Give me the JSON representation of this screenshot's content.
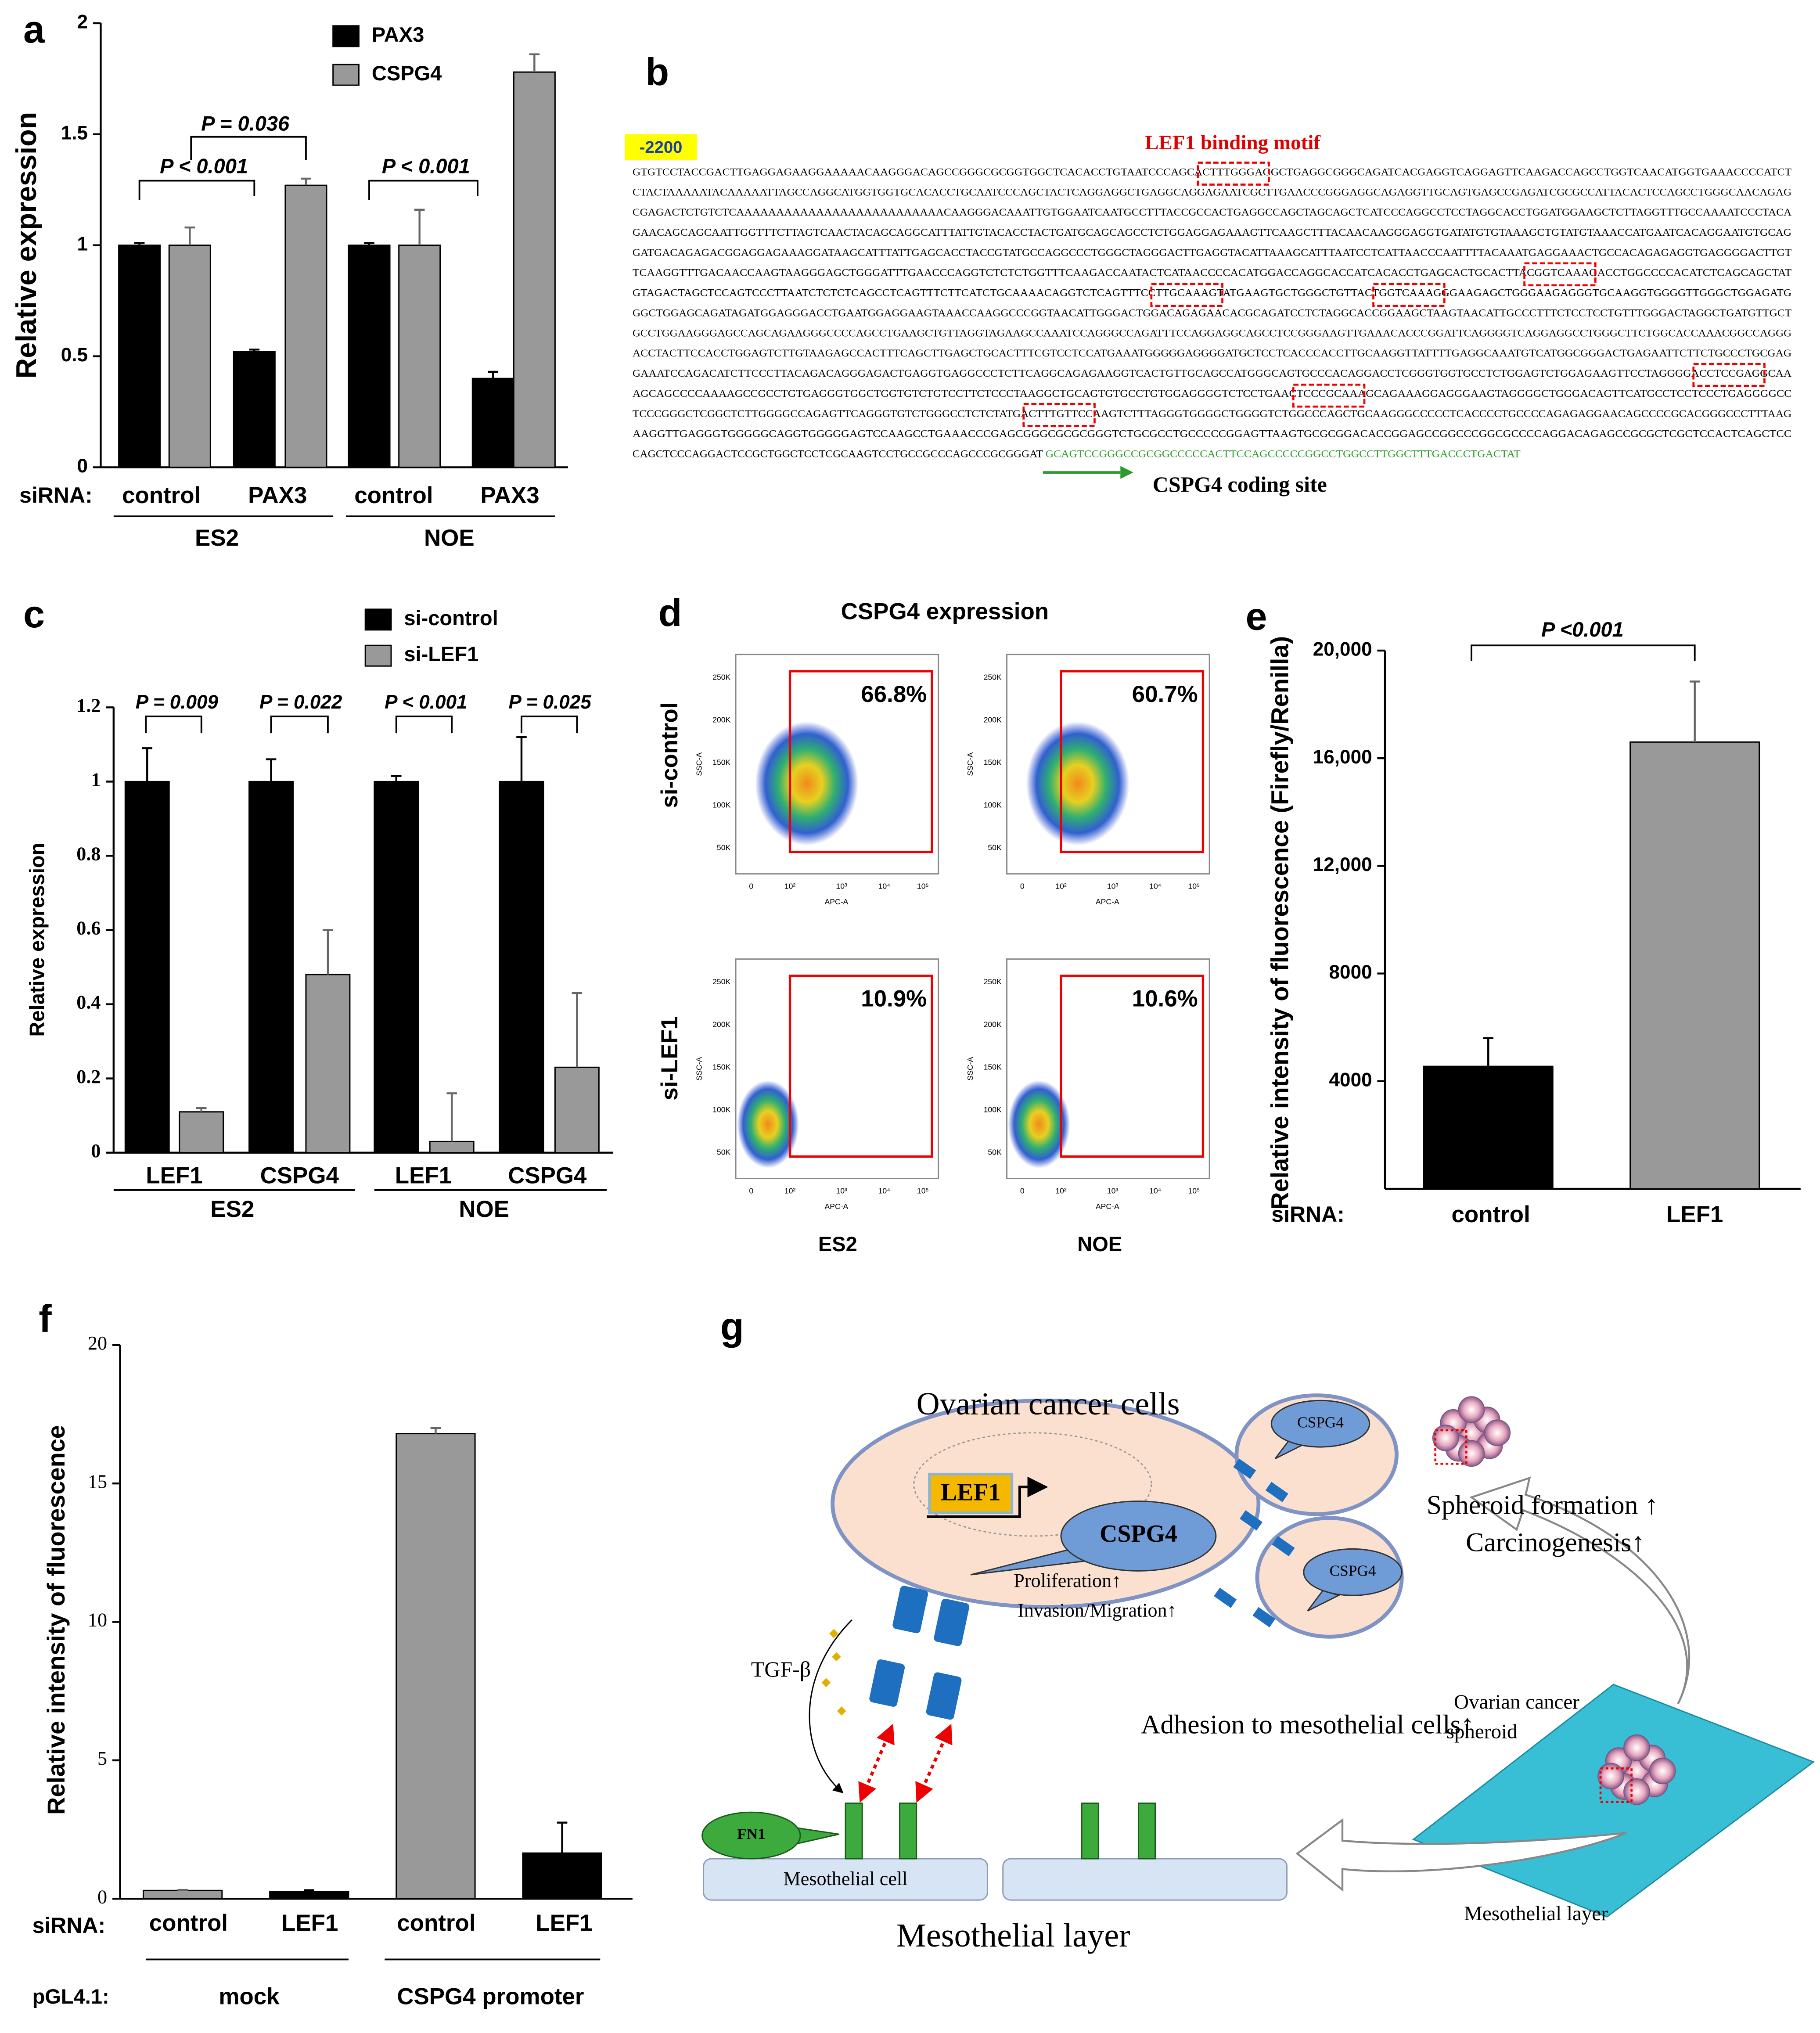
{
  "panel_labels": [
    "a",
    "b",
    "c",
    "d",
    "e",
    "f",
    "g"
  ],
  "chart_data": [
    {
      "type": "bar",
      "ylabel": "Relative expression",
      "x_prefix": "siRNA:",
      "categories": [
        "control",
        "PAX3",
        "control",
        "PAX3"
      ],
      "groups": [
        "ES2",
        "NOE"
      ],
      "series": [
        {
          "name": "PAX3",
          "color": "#000000",
          "values": [
            1,
            0.52,
            1,
            0.4
          ],
          "errors": [
            0.01,
            0.01,
            0.01,
            0.03
          ]
        },
        {
          "name": "CSPG4",
          "color": "#999999",
          "values": [
            1,
            1.27,
            1,
            1.78
          ],
          "errors": [
            0.08,
            0.03,
            0.16,
            0.08
          ]
        }
      ],
      "ylim": [
        0,
        2
      ],
      "yticks": [
        0,
        0.5,
        1,
        1.5,
        2
      ],
      "annotations": [
        "P = 0.036",
        "P < 0.001",
        "P < 0.001"
      ]
    },
    {
      "type": "bar",
      "ylabel": "Relative expression",
      "categories": [
        "LEF1",
        "CSPG4",
        "LEF1",
        "CSPG4"
      ],
      "groups": [
        "ES2",
        "NOE"
      ],
      "series": [
        {
          "name": "si-control",
          "color": "#000000",
          "values": [
            1,
            1,
            1,
            1
          ],
          "errors": [
            0.09,
            0.06,
            0.015,
            0.12
          ]
        },
        {
          "name": "si-LEF1",
          "color": "#999999",
          "values": [
            0.11,
            0.48,
            0.03,
            0.23
          ],
          "errors": [
            0.01,
            0.12,
            0.13,
            0.2
          ]
        }
      ],
      "ylim": [
        0,
        1.2
      ],
      "yticks": [
        0,
        0.2,
        0.4,
        0.6,
        0.8,
        1,
        1.2
      ],
      "annotations": [
        "P = 0.009",
        "P = 0.022",
        "P < 0.001",
        "P = 0.025"
      ]
    },
    {
      "type": "bar",
      "ylabel": "Relative intensity of fluorescence (Firefly/Renilla)",
      "x_prefix": "siRNA:",
      "categories": [
        "control",
        "LEF1"
      ],
      "series": [
        {
          "colors": [
            "#000000",
            "#999999"
          ],
          "values": [
            4550,
            16600
          ],
          "errors": [
            1050,
            2250
          ]
        }
      ],
      "ylim": [
        0,
        20000
      ],
      "yticks": [
        4000,
        8000,
        {
          "value": 12000,
          "label": "12,000"
        },
        {
          "value": 16000,
          "label": "16,000"
        },
        {
          "value": 20000,
          "label": "20,000"
        }
      ],
      "annotations": [
        "P <0.001"
      ]
    },
    {
      "type": "bar",
      "ylabel": "Relative intensity of fluorescence",
      "x_prefix": "siRNA:",
      "categories": [
        "control",
        "LEF1",
        "control",
        "LEF1"
      ],
      "group_prefix": "pGL4.1:",
      "groups": [
        "mock",
        "CSPG4 promoter"
      ],
      "series": [
        {
          "colors": [
            "#999999",
            "#000000",
            "#999999",
            "#000000"
          ],
          "values": [
            0.3,
            0.25,
            16.8,
            1.65
          ],
          "errors": [
            0.02,
            0.06,
            0.2,
            1.1
          ]
        }
      ],
      "ylim": [
        0,
        20
      ],
      "yticks": [
        0,
        5,
        10,
        15,
        20
      ]
    }
  ],
  "sequence_panel": {
    "start": "-2200",
    "motif_label": "LEF1 binding motif",
    "coding_label": "CSPG4 coding site",
    "lines": [
      "GTGTCCTACCGACTTGAGGAGAAGGAAAAACAAGGGACAGCCGGGCGCGGTGGCTCACACCTGTAATCCCAGCACTTTGGGAGGCTGAGGCGGGCAGATCACGAGGTCAGGAGTTCAAGACCAGCCTGGTCAACATGGTGAAACCCCATCT",
      "CTACTAAAAATACAAAAATTAGCCAGGCATGGTGGTGCACACCTGCAATCCCAGCTACTCAGGAGGCTGAGGCAGGAGAATCGCTTGAACCCGGGAGGCAGAGGTTGCAGTGAGCCGAGATCGCGCCATTACACTCCAGCCTGGGCAACAGAG",
      "CGAGACTCTGTCTCAAAAAAAAAAAAAAAAAAAAAAAAAACAAGGGACAAATTGTGGAATCAATGCCTTTACCGCCACTGAGGCCAGCTAGCAGCTCATCCCAGGCCTCCTAGGCACCTGGATGGAAGCTCTTAGGTTTGCCAAAATCCCTACA",
      "GAACAGCAGCAATTGGTTTCTTAGTCAACTACAGCAGGCATTTATTGTACACCTACTGATGCAGCAGCCTCTGGAGGAGAAAGTTCAAGCTTTACAACAAGGGAGGTGATATGTGTAAAGCTGTATGTAAACCATGAATCACAGGAATGTGCAG",
      "GATGACAGAGACGGAGGAGAAAGGATAAGCATTTATTGAGCACCTACCGTATGCCAGGCCCTGGGCTAGGGACTTGAGGTACATTAAAGCATTTAATCCTCATTAACCCAATTTTACAAATGAGGAAACTGCCACAGAGAGGTGAGGGGACTTGT",
      "TCAAGGTTTGACAACCAAGTAAGGGAGCTGGGATTTGAACCCAGGTCTCTCTGGTTTCAAGACCAATACTCATAACCCCACATGGACCAGGCACCATCACACCTGAGCACTGCACTTACGGTCAAAGACCTGGCCCCACATCTCAGCAGCTAT",
      "GTAGACTAGCTCCAGTCCCTTAATCTCTCTCAGCCTCAGTTTCTTCATCTGCAAAACAGGTCTCAGTTTCCTTGCAAAGTATGAAGTGCTGGGCTGTTACTGGTCAAAGGGAAGAGCTGGGAAGAGGGTGCAAGGTGGGGTTGGGCTGGAGATG",
      "GGCTGGAGCAGATAGATGGAGGGACCTGAATGGAGGAAGTAAACCAAGGCCCGGTAACATTGGGACTGGACAGAGAACACGCAGATCCTCTAGGCACCGGAAGCTAAGTAACATTGCCCTTTCTCCTCCTGTTTGGGACTAGGCTGATGTTGCT",
      "GCCTGGAAGGGAGCCAGCAGAAGGGCCCCAGCCTGAAGCTGTTAGGTAGAAGCCAAATCCAGGGCCAGATTTCCAGGAGGCAGCCTCCGGGAAGTTGAAACACCCGGATTCAGGGGTCAGGAGGCCTGGGCTTCTGGCACCAAACGGCCAGGG",
      "ACCTACTTCCACCTGGAGTCTTGTAAGAGCCACTTTCAGCTTGAGCTGCACTTTCGTCCTCCATGAAATGGGGGAGGGGATGCTCCTCACCCACCTTGCAAGGTTATTTTGAGGCAAATGTCATGGCGGGACTGAGAATTCTTCTGCCCTGCGAG",
      "GAAATCCAGACATCTTCCCTTACAGACAGGGAGACTGAGGTGAGGCCCTCTTCAGGCAGAGAAGGTCACTGTTGCAGCCATGGGCAGTGCCCACAGGACCTCGGGTGGTGCCTCTGGAGTCTGGAGAAGTTCCTAGGGGACCTCCGAGGCAA",
      "AGCAGCCCCAAAAGCCGCCTGTGAGGGTGGCTGGTGTCTGTCCTTCTCCCTAAGGCTGCAGTGTGCCTGTGGAGGGGTCTCCTGAACTCCCGCAAAGCAGAAAGGAGGGAAGTAGGGGCTGGGACAGTTCATGCCTCCTCCCTGAGGGGCC",
      "TCCCGGGCTCGGCTCTTGGGGCCAGAGTTCAGGGTGTCTGGGCCTCTCTATGACTTTGTTCCAAGTCTTTAGGGTGGGGCTGGGGTCTGGCCCAGCTGCAAGGGCCCCCTCACCCCTGCCCCAGAGAGGAACAGCCCCGCACGGGCCCTTTAAG",
      "AAGGTTGAGGGTGGGGGCAGGTGGGGGAGTCCAAGCCTGAAACCCGAGCGGGCGCGCGGGTCTGCGCCTGCCCCCGGAGTTAAGTGCGCGGACACCGGAGCCGGCCCGGCGCCCCAGGACAGAGCCGCGCTCGCTCCACTCAGCTCC",
      "CAGCTCCCAGGACTCCGCTGGCTCCTCGCAAGTCCTGCCGCCCAGCCCGCGGGAT"
    ],
    "coding_sequence": "GCAGTCCGGGCCGCGGCCCCCACTTCCAGCCCCCGGCCTGGCCTTGGCTTTGACCCTGACTAT"
  },
  "flow_panel": {
    "title": "CSPG4 expression",
    "rows": [
      "si-control",
      "si-LEF1"
    ],
    "columns": [
      "ES2",
      "NOE"
    ],
    "gates": [
      [
        "66.8%",
        "60.7%"
      ],
      [
        "10.9%",
        "10.6%"
      ]
    ],
    "y_axis_label": "SSC-A",
    "x_axis_label": "APC-A",
    "y_tick_labels": [
      "50K",
      "100K",
      "150K",
      "200K",
      "250K"
    ],
    "x_tick_labels": [
      "0",
      "10²",
      "10³",
      "10⁴",
      "10⁵"
    ]
  },
  "diagram": {
    "cells": "Ovarian cancer cells",
    "lef1": "LEF1",
    "cspg4": "CSPG4",
    "cspg4_small": [
      "CSPG4",
      "CSPG4"
    ],
    "effects": [
      "Proliferation↑",
      "Invasion/Migration↑"
    ],
    "outcomes": [
      "Spheroid formation ↑",
      "Carcinogenesis↑"
    ],
    "tgf": "TGF-β",
    "adhesion": "Adhesion to mesothelial cells↑",
    "spheroid": [
      "Ovarian cancer",
      "spheroid"
    ],
    "fn1": "FN1",
    "meso_cell": "Mesothelial cell",
    "meso_layer": "Mesothelial layer",
    "meso_layer_small": "Mesothelial layer"
  }
}
